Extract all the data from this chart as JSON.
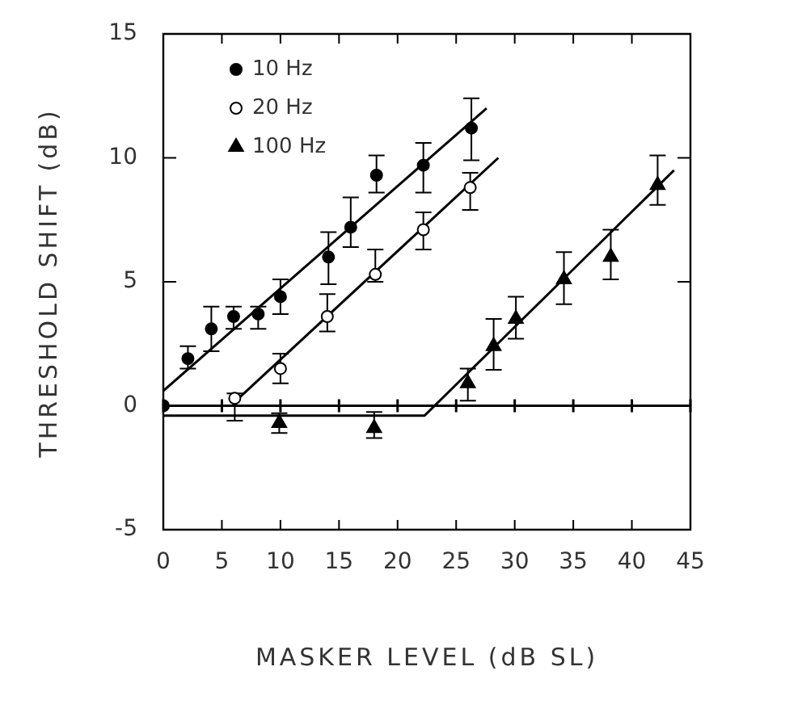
{
  "chart_data": {
    "type": "scatter",
    "xlabel": "MASKER LEVEL (dB SL)",
    "ylabel": "THRESHOLD SHIFT (dB)",
    "xlim": [
      0,
      45
    ],
    "xticks": [
      0,
      5,
      10,
      15,
      20,
      25,
      30,
      35,
      40,
      45
    ],
    "ylim": [
      -5,
      15
    ],
    "yticks": [
      -5,
      0,
      5,
      10,
      15
    ],
    "grid": false,
    "legend": "top left",
    "ref_lines": [
      {
        "axis": "y",
        "value": 0,
        "color": "#000000"
      }
    ],
    "series": [
      {
        "name": "10 Hz",
        "marker": "circle",
        "color": "#000000",
        "x": [
          0,
          2.1,
          4.1,
          6.0,
          8.1,
          10.0,
          14.1,
          16.0,
          18.2,
          22.2,
          26.3
        ],
        "values": [
          0,
          1.9,
          3.1,
          3.6,
          3.7,
          4.4,
          6.0,
          7.2,
          9.3,
          9.7,
          11.2
        ],
        "errors": [
          null,
          [
            1.5,
            2.4
          ],
          [
            2.2,
            4.0
          ],
          [
            3.1,
            4.0
          ],
          [
            3.1,
            4.0
          ],
          [
            3.7,
            5.1
          ],
          [
            4.9,
            7.0
          ],
          [
            6.4,
            8.4
          ],
          [
            8.6,
            10.1
          ],
          [
            8.6,
            10.6
          ],
          [
            9.9,
            12.4
          ]
        ]
      },
      {
        "name": "20 Hz",
        "marker": "circle",
        "color": "#ffffff",
        "x": [
          6.1,
          10.0,
          14.0,
          18.1,
          22.2,
          26.2
        ],
        "values": [
          0.3,
          1.5,
          3.6,
          5.3,
          7.1,
          8.8
        ],
        "errors": [
          [
            -0.6,
            0.5
          ],
          [
            0.9,
            2.1
          ],
          [
            3.0,
            4.5
          ],
          [
            5.0,
            6.3
          ],
          [
            6.3,
            7.8
          ],
          [
            7.9,
            9.4
          ]
        ]
      },
      {
        "name": "100 Hz",
        "marker": "triangle",
        "color": "#000000",
        "x": [
          9.9,
          18.0,
          26.0,
          28.2,
          30.1,
          34.2,
          38.2,
          42.2
        ],
        "values": [
          -0.7,
          -0.9,
          0.9,
          2.4,
          3.5,
          5.1,
          6.0,
          8.9
        ],
        "errors": [
          [
            -1.1,
            -0.3
          ],
          [
            -1.3,
            -0.25
          ],
          [
            0.2,
            1.5
          ],
          [
            1.45,
            3.5
          ],
          [
            2.7,
            4.4
          ],
          [
            4.1,
            6.2
          ],
          [
            5.1,
            7.1
          ],
          [
            8.1,
            10.1
          ]
        ]
      },
      {
        "type": "line",
        "marker": "none",
        "color": "#000000",
        "x": [
          0,
          27.6
        ],
        "values": [
          0.6,
          12.0
        ]
      },
      {
        "type": "line",
        "marker": "none",
        "color": "#000000",
        "x": [
          6.2,
          28.6
        ],
        "values": [
          0.2,
          10.0
        ]
      },
      {
        "type": "line",
        "marker": "none",
        "color": "#000000",
        "x": [
          0,
          22.3,
          43.6
        ],
        "values": [
          -0.4,
          -0.4,
          9.5
        ]
      }
    ]
  }
}
